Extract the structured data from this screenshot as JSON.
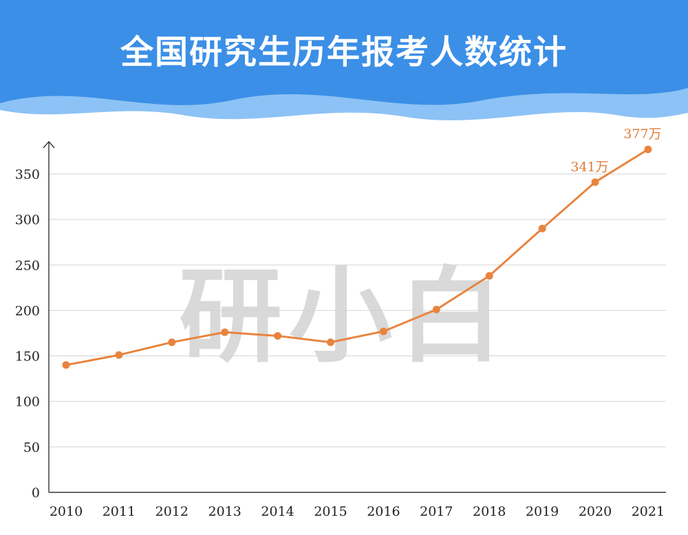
{
  "colors": {
    "header_bg": "#3b8fe6",
    "wave_light": "#8cc2f5",
    "line": "#e8843f",
    "grid": "#d4d4d4",
    "axis": "#333333",
    "watermark": "#d9d9d9"
  },
  "watermark": "研小白",
  "chart_data": {
    "type": "line",
    "title": "全国研究生历年报考人数统计",
    "xlabel": "",
    "ylabel": "",
    "categories": [
      "2010",
      "2011",
      "2012",
      "2013",
      "2014",
      "2015",
      "2016",
      "2017",
      "2018",
      "2019",
      "2020",
      "2021"
    ],
    "series": [
      {
        "values": [
          140,
          151,
          165,
          176,
          172,
          165,
          177,
          201,
          238,
          290,
          341,
          377
        ]
      }
    ],
    "data_labels": [
      {
        "index": 10,
        "text": "341万"
      },
      {
        "index": 11,
        "text": "377万"
      }
    ],
    "ylim": [
      0,
      350
    ],
    "yticks": [
      0,
      50,
      100,
      150,
      200,
      250,
      300,
      350
    ],
    "grid": "horizontal",
    "legend": "none"
  }
}
